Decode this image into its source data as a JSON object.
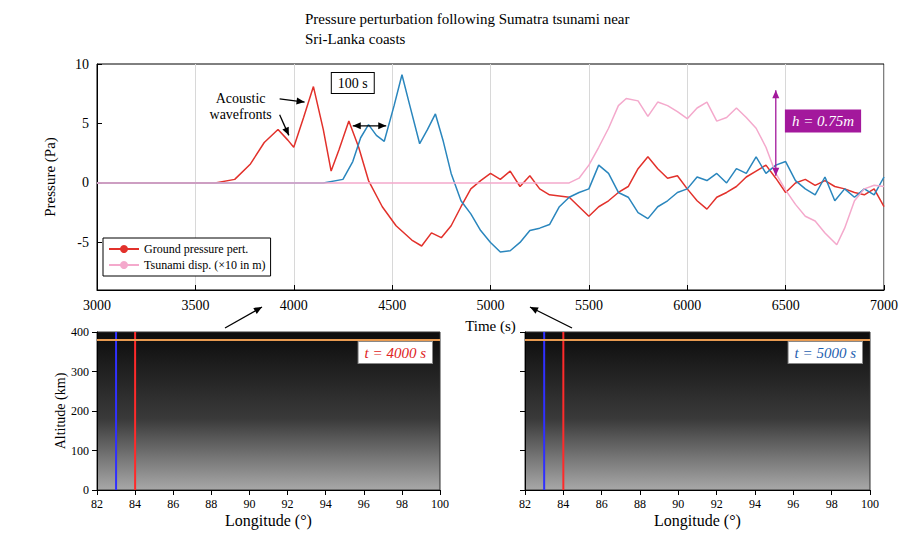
{
  "chart_data": [
    {
      "type": "line",
      "title": "Pressure perturbation following Sumatra tsunami near Sri-Lanka coasts",
      "x_label": "Time (s)",
      "y_label": "Pressure (Pa)",
      "xlim": [
        3000,
        7000
      ],
      "xticks": [
        3000,
        3500,
        4000,
        4500,
        5000,
        5500,
        6000,
        6500,
        7000
      ],
      "ylim": [
        -9,
        10
      ],
      "yticks": [
        -5,
        0,
        5,
        10
      ],
      "grid": "x",
      "legend": "lower left",
      "series": [
        {
          "name": "Ground pressure pert.",
          "color": "#e2312b",
          "x": [
            3000,
            3600,
            3700,
            3780,
            3850,
            3920,
            3970,
            4000,
            4050,
            4100,
            4150,
            4190,
            4230,
            4280,
            4330,
            4380,
            4450,
            4520,
            4600,
            4650,
            4700,
            4750,
            4800,
            4850,
            4900,
            4950,
            5000,
            5050,
            5100,
            5150,
            5200,
            5250,
            5300,
            5400,
            5450,
            5500,
            5550,
            5600,
            5650,
            5700,
            5750,
            5800,
            5850,
            5900,
            5950,
            6000,
            6050,
            6100,
            6150,
            6200,
            6250,
            6300,
            6350,
            6400,
            6450,
            6500,
            6550,
            6600,
            6650,
            6700,
            6750,
            6800,
            6850,
            6900,
            6950,
            7000
          ],
          "values": [
            0,
            0,
            0.3,
            1.6,
            3.4,
            4.5,
            3.6,
            3.0,
            5.5,
            8.1,
            4.5,
            1.0,
            2.8,
            5.2,
            3.0,
            0.2,
            -2.0,
            -3.6,
            -4.8,
            -5.3,
            -4.2,
            -4.6,
            -3.6,
            -2.0,
            -0.5,
            0.2,
            0.8,
            0.3,
            1.0,
            -0.3,
            0.6,
            -0.5,
            -1.0,
            -1.2,
            -2.0,
            -2.8,
            -2.0,
            -1.5,
            -0.8,
            -0.3,
            1.2,
            2.2,
            1.2,
            0.4,
            0.6,
            -0.5,
            -1.5,
            -2.2,
            -1.2,
            -0.8,
            -0.3,
            0.5,
            1.0,
            1.5,
            0.4,
            -0.8,
            0.0,
            0.3,
            -0.2,
            0.2,
            -0.3,
            -0.5,
            -0.8,
            -1.0,
            -0.5,
            -2.0
          ]
        },
        {
          "color": "#2a86bd",
          "x": [
            3000,
            4150,
            4250,
            4300,
            4340,
            4380,
            4420,
            4460,
            4510,
            4550,
            4590,
            4640,
            4680,
            4720,
            4760,
            4800,
            4850,
            4900,
            4950,
            5000,
            5050,
            5100,
            5150,
            5200,
            5250,
            5300,
            5350,
            5400,
            5450,
            5500,
            5550,
            5600,
            5650,
            5700,
            5750,
            5800,
            5850,
            5900,
            5950,
            6000,
            6050,
            6100,
            6150,
            6200,
            6250,
            6300,
            6350,
            6400,
            6450,
            6500,
            6550,
            6600,
            6650,
            6700,
            6750,
            6800,
            6850,
            6900,
            6950,
            7000
          ],
          "values": [
            0,
            0,
            0.3,
            1.8,
            3.8,
            4.9,
            4.0,
            3.5,
            6.5,
            9.1,
            6.5,
            3.3,
            4.5,
            5.8,
            3.5,
            0.8,
            -1.5,
            -2.6,
            -4.0,
            -5.0,
            -5.8,
            -5.7,
            -5.0,
            -4.0,
            -3.8,
            -3.5,
            -2.0,
            -1.2,
            -0.8,
            -0.5,
            1.5,
            0.8,
            -0.8,
            -1.2,
            -2.5,
            -3.0,
            -2.0,
            -1.5,
            -0.8,
            -0.5,
            0.5,
            0.2,
            0.8,
            0.0,
            1.2,
            0.8,
            2.2,
            0.8,
            1.5,
            1.8,
            0.2,
            -0.5,
            -1.0,
            0.5,
            -1.5,
            -0.5,
            -1.2,
            -0.5,
            -1.0,
            0.5
          ]
        },
        {
          "name": "Tsunami disp. (×10 in m)",
          "color": "#f4a9cc",
          "x": [
            3000,
            5400,
            5450,
            5500,
            5550,
            5600,
            5650,
            5690,
            5750,
            5800,
            5850,
            5900,
            5950,
            6000,
            6050,
            6100,
            6150,
            6200,
            6250,
            6300,
            6350,
            6400,
            6450,
            6500,
            6550,
            6600,
            6650,
            6700,
            6760,
            6800,
            6850,
            6900,
            6950,
            7000
          ],
          "values": [
            0,
            0,
            0.4,
            1.5,
            3.0,
            4.6,
            6.5,
            7.1,
            6.9,
            5.6,
            6.8,
            6.5,
            6.0,
            5.4,
            6.3,
            6.8,
            5.2,
            5.5,
            6.3,
            5.5,
            4.6,
            3.0,
            0.8,
            -0.6,
            -1.8,
            -2.8,
            -3.2,
            -4.2,
            -5.2,
            -3.8,
            -1.5,
            -0.5,
            -0.2,
            -0.3
          ]
        }
      ],
      "annotations": [
        {
          "text": "Acoustic wavefronts",
          "x": 3730,
          "y": 6.4,
          "arrows": [
            [
              4055,
              6.8
            ],
            [
              3975,
              4.0
            ]
          ]
        },
        {
          "text": "100 s",
          "x": 4300,
          "y": 8.4,
          "span": [
            [
              4300,
              4.8
            ],
            [
              4470,
              4.8
            ]
          ]
        },
        {
          "text": "h = 0.75m",
          "x": 6690,
          "y": 5.2,
          "span": [
            [
              6450,
              0.6
            ],
            [
              6450,
              7.8
            ]
          ],
          "color": "#a3189c"
        }
      ]
    },
    {
      "type": "snapshot",
      "x_label": "Longitude (°)",
      "y_label": "Altitude (km)",
      "xlim": [
        82,
        100
      ],
      "xticks": [
        82,
        84,
        86,
        88,
        90,
        92,
        94,
        96,
        98,
        100
      ],
      "ylim": [
        0,
        400
      ],
      "yticks": [
        0,
        100,
        200,
        300,
        400
      ],
      "lines": [
        {
          "x": 83,
          "color": "#3030ff"
        },
        {
          "x": 84,
          "color": "#ff2a2a"
        }
      ],
      "hline": {
        "y": 380,
        "color": "#e89a50"
      },
      "annotations": [
        {
          "text": "t = 4000 s",
          "color": "#e02424"
        }
      ]
    },
    {
      "type": "snapshot",
      "x_label": "Longitude (°)",
      "xlim": [
        82,
        100
      ],
      "xticks": [
        82,
        84,
        86,
        88,
        90,
        92,
        94,
        96,
        98,
        100
      ],
      "ylim": [
        0,
        400
      ],
      "yticks": [
        0,
        100,
        200,
        300,
        400
      ],
      "tick_labels": "x",
      "lines": [
        {
          "x": 83,
          "color": "#3030ff"
        },
        {
          "x": 84,
          "color": "#ff2a2a"
        }
      ],
      "hline": {
        "y": 380,
        "color": "#e89a50"
      },
      "annotations": [
        {
          "text": "t = 5000 s",
          "color": "#1f5fb0"
        }
      ]
    }
  ]
}
